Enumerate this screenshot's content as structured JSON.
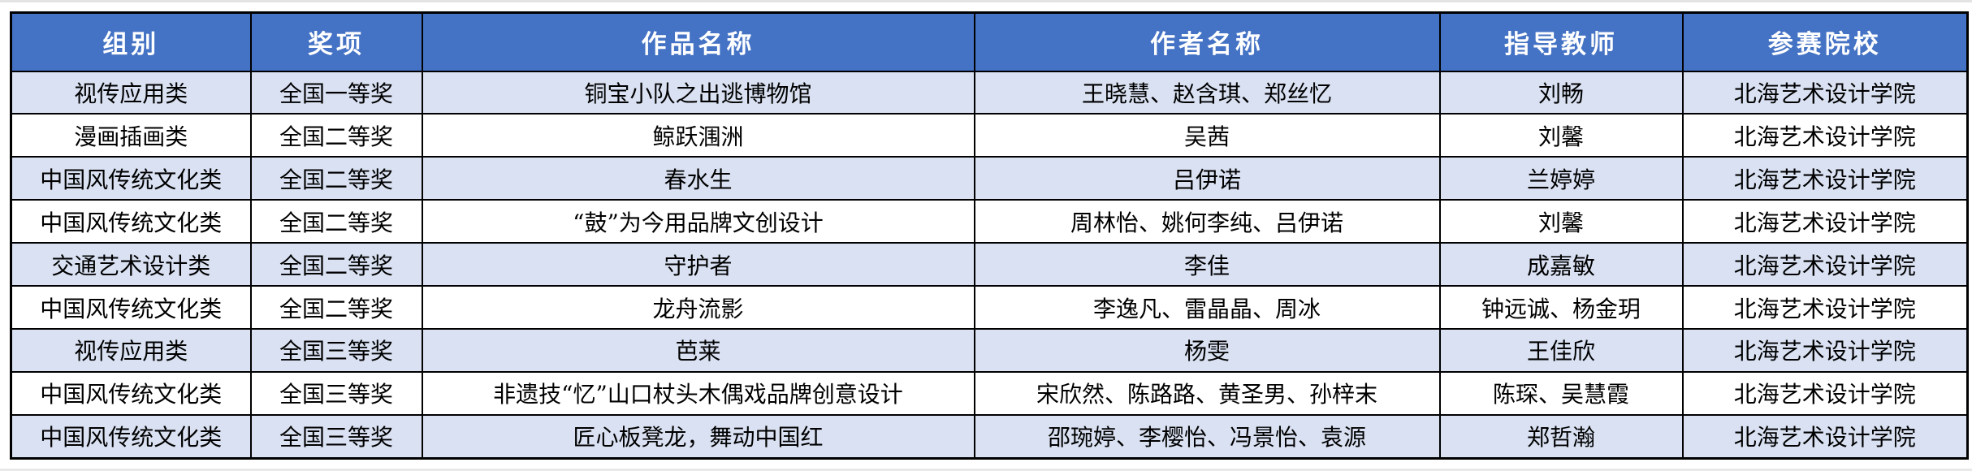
{
  "colors": {
    "header_bg": "#4472C4",
    "header_text": "#FFFFFF",
    "alt_row_bg": "#D9E1F2",
    "row_bg": "#FFFFFF",
    "border": "#000000",
    "body_text": "#000000"
  },
  "table": {
    "headers": [
      "组别",
      "奖项",
      "作品名称",
      "作者名称",
      "指导教师",
      "参赛院校"
    ],
    "rows": [
      [
        "视传应用类",
        "全国一等奖",
        "铜宝小队之出逃博物馆",
        "王晓慧、赵含琪、郑丝忆",
        "刘畅",
        "北海艺术设计学院"
      ],
      [
        "漫画插画类",
        "全国二等奖",
        "鲸跃涠洲",
        "吴茜",
        "刘馨",
        "北海艺术设计学院"
      ],
      [
        "中国风传统文化类",
        "全国二等奖",
        "春水生",
        "吕伊诺",
        "兰婷婷",
        "北海艺术设计学院"
      ],
      [
        "中国风传统文化类",
        "全国二等奖",
        "“鼓”为今用品牌文创设计",
        "周林怡、姚何李纯、吕伊诺",
        "刘馨",
        "北海艺术设计学院"
      ],
      [
        "交通艺术设计类",
        "全国二等奖",
        "守护者",
        "李佳",
        "成嘉敏",
        "北海艺术设计学院"
      ],
      [
        "中国风传统文化类",
        "全国二等奖",
        "龙舟流影",
        "李逸凡、雷晶晶、周冰",
        "钟远诚、杨金玥",
        "北海艺术设计学院"
      ],
      [
        "视传应用类",
        "全国三等奖",
        "芭莱",
        "杨雯",
        "王佳欣",
        "北海艺术设计学院"
      ],
      [
        "中国风传统文化类",
        "全国三等奖",
        "非遗技“忆”山口杖头木偶戏品牌创意设计",
        "宋欣然、陈路路、黄圣男、孙梓末",
        "陈琛、吴慧霞",
        "北海艺术设计学院"
      ],
      [
        "中国风传统文化类",
        "全国三等奖",
        "匠心板凳龙，舞动中国红",
        "邵琬婷、李樱怡、冯景怡、袁源",
        "郑哲瀚",
        "北海艺术设计学院"
      ]
    ]
  }
}
